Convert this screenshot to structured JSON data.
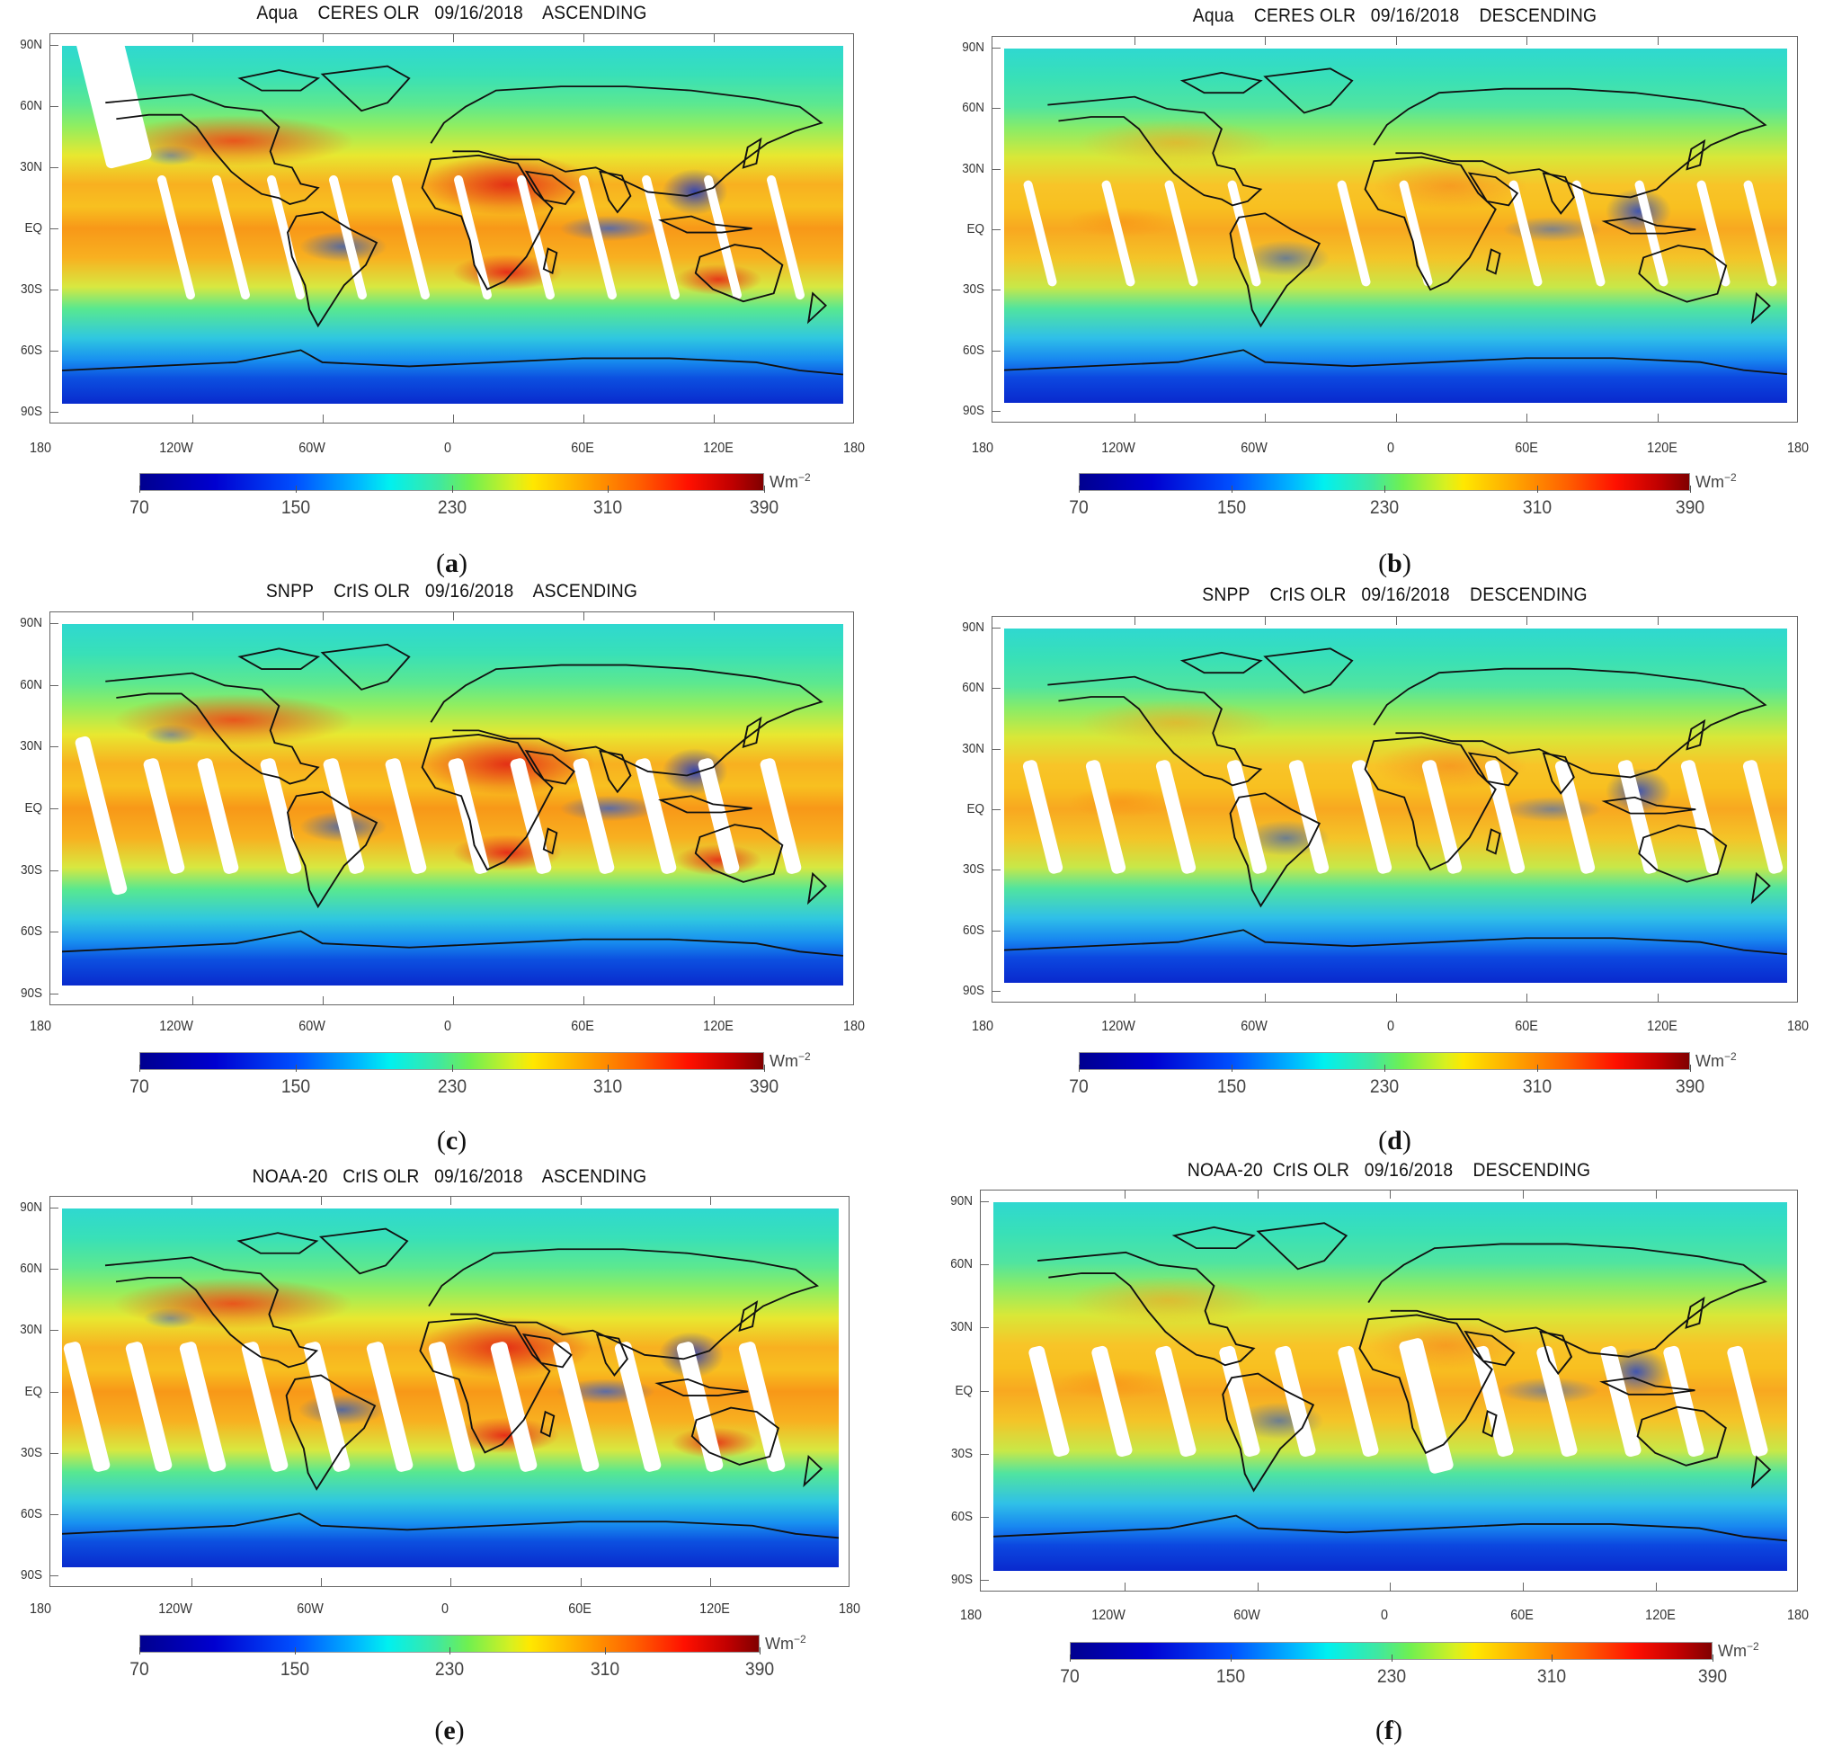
{
  "figure": {
    "description": "Global maps of Outgoing Longwave Radiation (OLR) on 09/16/2018 from Aqua CERES, SNPP CrIS, and NOAA-20 CrIS, ascending and descending passes",
    "colorbar": {
      "min": 70,
      "max": 390,
      "ticks": [
        "70",
        "150",
        "230",
        "310",
        "390"
      ],
      "unit_base": "Wm",
      "unit_exp": "−2",
      "colormap": "jet",
      "colors": [
        "#00008f",
        "#0000d0",
        "#0050ff",
        "#00b8ff",
        "#00f0f0",
        "#70f050",
        "#ffe800",
        "#ffb000",
        "#ff6000",
        "#ff1000",
        "#800000"
      ]
    },
    "lat_ticks": [
      "90N",
      "60N",
      "30N",
      "EQ",
      "30S",
      "60S",
      "90S"
    ],
    "lon_ticks": [
      "180",
      "120W",
      "60W",
      "0",
      "60E",
      "120E",
      "180"
    ]
  },
  "panels": [
    {
      "id": "a",
      "caption_open": "(",
      "caption_letter": "a",
      "caption_close": ")",
      "title": "Aqua    CERES OLR   09/16/2018    ASCENDING",
      "pass": "ascending"
    },
    {
      "id": "b",
      "caption_open": "(",
      "caption_letter": "b",
      "caption_close": ")",
      "title": "Aqua    CERES OLR   09/16/2018    DESCENDING",
      "pass": "descending"
    },
    {
      "id": "c",
      "caption_open": "(",
      "caption_letter": "c",
      "caption_close": ")",
      "title": "SNPP    CrIS OLR   09/16/2018    ASCENDING",
      "pass": "ascending"
    },
    {
      "id": "d",
      "caption_open": "(",
      "caption_letter": "d",
      "caption_close": ")",
      "title": "SNPP    CrIS OLR   09/16/2018    DESCENDING",
      "pass": "descending"
    },
    {
      "id": "e",
      "caption_open": "(",
      "caption_letter": "e",
      "caption_close": ")",
      "title": "NOAA-20   CrIS OLR   09/16/2018    ASCENDING",
      "pass": "ascending"
    },
    {
      "id": "f",
      "caption_open": "(",
      "caption_letter": "f",
      "caption_close": ")",
      "title": "NOAA-20  CrIS OLR   09/16/2018    DESCENDING",
      "pass": "descending"
    }
  ]
}
